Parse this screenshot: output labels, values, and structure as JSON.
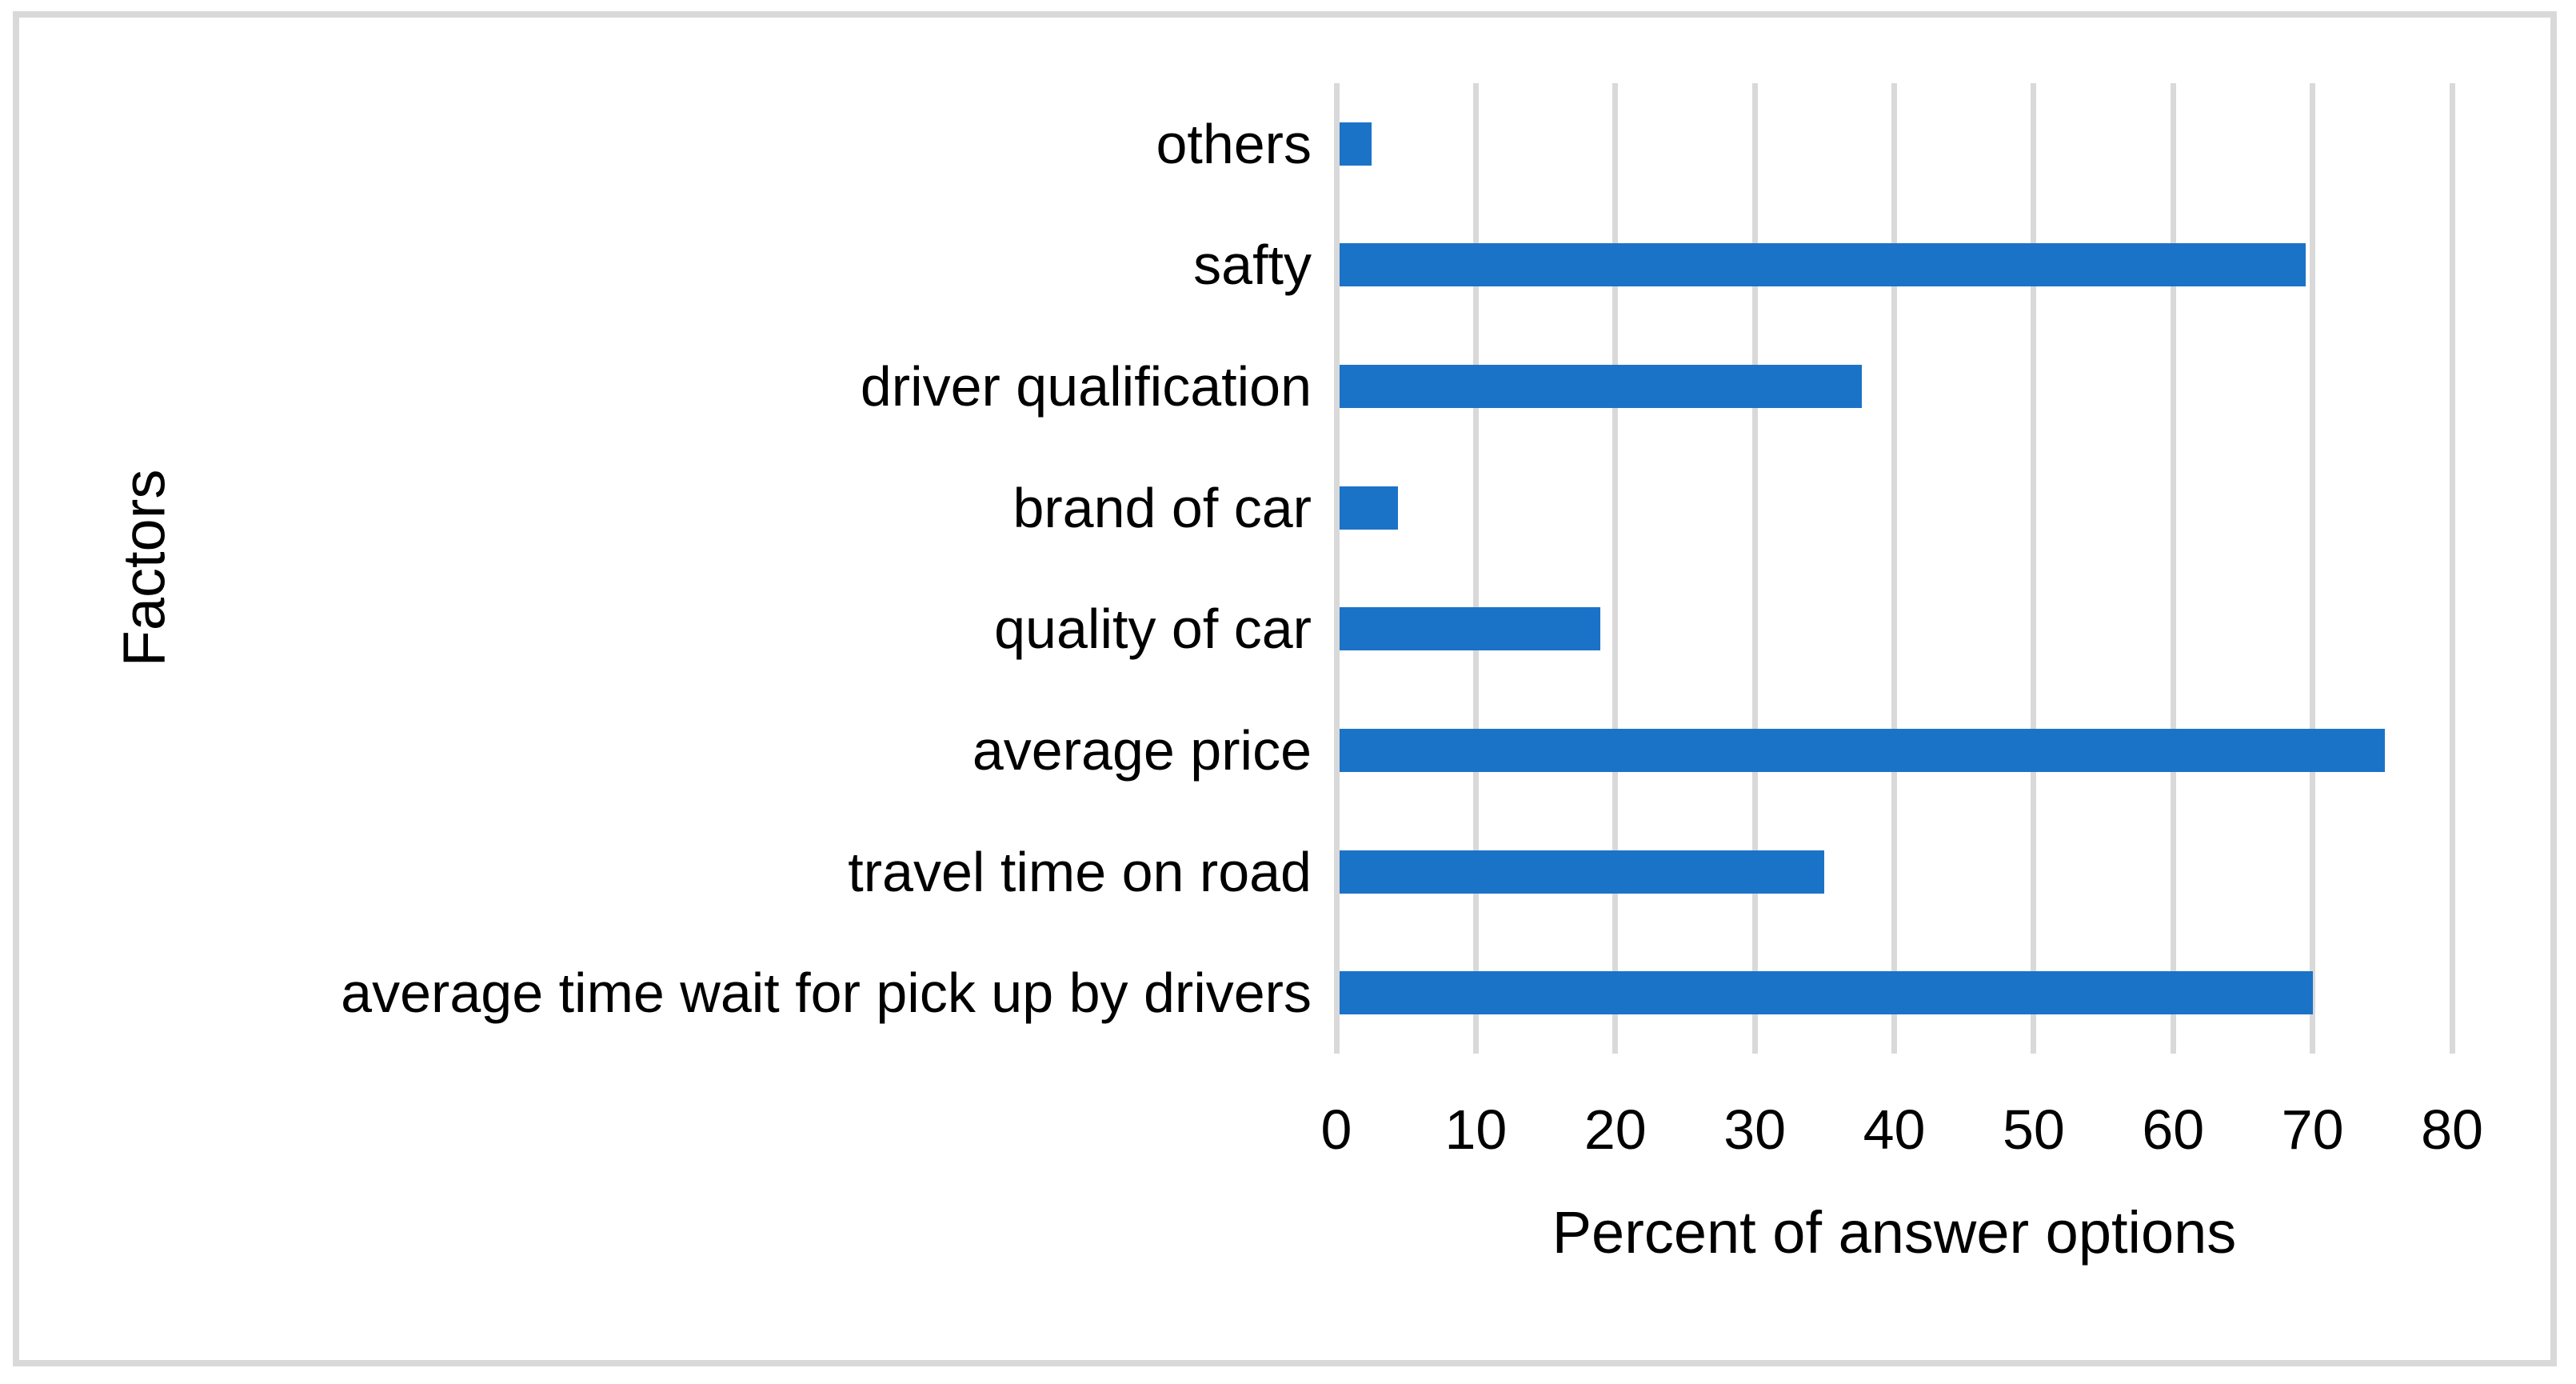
{
  "chart_data": {
    "type": "bar",
    "orientation": "horizontal",
    "categories": [
      "others",
      "safty",
      "driver qualification",
      "brand of car",
      "quality of car",
      "average price",
      "travel time on road",
      "average time wait for pick up by drivers"
    ],
    "values": [
      2.5,
      69.5,
      37.7,
      4.4,
      18.9,
      75.2,
      35.0,
      70.0
    ],
    "xlabel": "Percent of answer options",
    "ylabel": "Factors",
    "xlim": [
      0,
      80
    ],
    "xticks": [
      0,
      10,
      20,
      30,
      40,
      50,
      60,
      70,
      80
    ],
    "grid": true,
    "legend": "none",
    "colors": {
      "bar": "#1B73C8",
      "gridline": "#D9D9D9",
      "frame_border": "#D9D9D9",
      "text": "#000000",
      "background": "#FFFFFF"
    }
  }
}
